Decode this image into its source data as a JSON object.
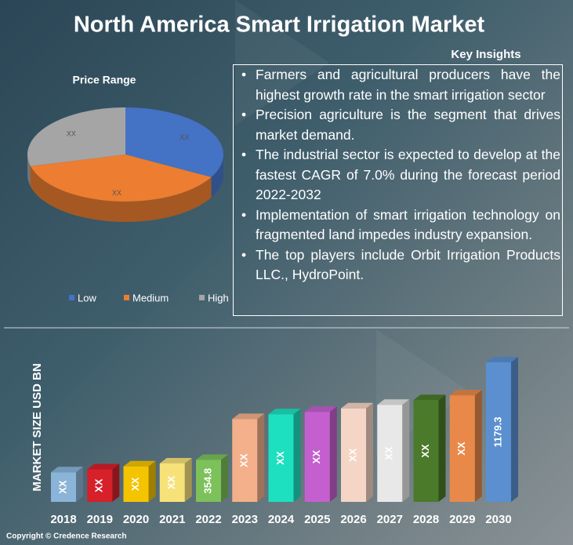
{
  "title": "North America Smart Irrigation Market",
  "insights_title": "Key Insights",
  "insights": [
    "Farmers and agricultural producers have the highest growth rate in the smart irrigation sector",
    "Precision agriculture is the segment that drives market demand.",
    "The industrial sector is expected to develop at the fastest CAGR of 7.0% during the forecast period 2022-2032",
    "Implementation of smart irrigation technology on fragmented land impedes industry expansion.",
    "The top players include Orbit Irrigation Products LLC., HydroPoint."
  ],
  "copyright": "Copyright © Credence Research",
  "chart_data": [
    {
      "type": "pie",
      "title": "Price Range",
      "categories": [
        "Low",
        "Medium",
        "High"
      ],
      "values": [
        33,
        38,
        29
      ],
      "value_labels": [
        "XX",
        "XX",
        "XX"
      ],
      "colors": [
        "#4472c4",
        "#ed7d31",
        "#a5a5a5"
      ],
      "legend": "bottom"
    },
    {
      "type": "bar",
      "y_label": "MARKET SIZE USD BN",
      "categories": [
        "2018",
        "2019",
        "2020",
        "2021",
        "2022",
        "2023",
        "2024",
        "2025",
        "2026",
        "2027",
        "2028",
        "2029",
        "2030"
      ],
      "values": [
        250,
        275,
        300,
        325,
        354.8,
        700,
        740,
        760,
        790,
        820,
        860,
        900,
        1179.3
      ],
      "value_labels": [
        "XX",
        "XX",
        "XX",
        "XX",
        "354.8",
        "XX",
        "XX",
        "XX",
        "XX",
        "XX",
        "XX",
        "XX",
        "1179.3"
      ],
      "colors": [
        "#8ab4d8",
        "#d6202a",
        "#f5c400",
        "#f7e27a",
        "#7cc15a",
        "#f4b08a",
        "#1de0c0",
        "#c55fd0",
        "#f5d5c5",
        "#e8e8e8",
        "#4a7a2a",
        "#e8894a",
        "#5b8fd0"
      ]
    }
  ]
}
